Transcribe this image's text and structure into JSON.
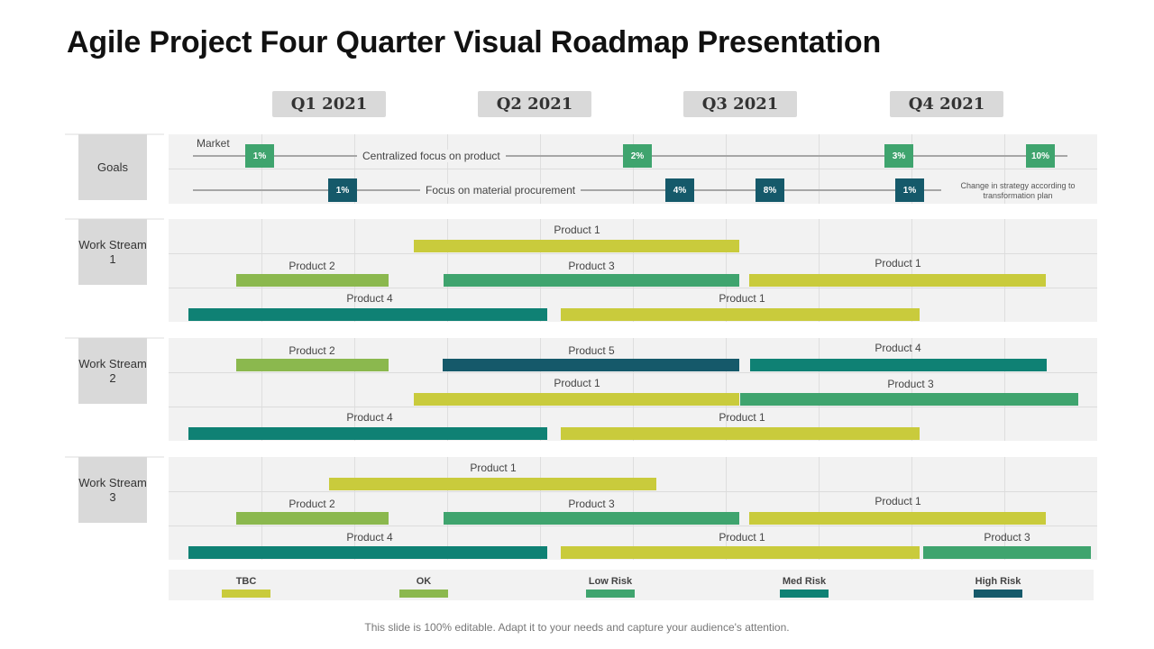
{
  "title": "Agile Project Four Quarter Visual Roadmap Presentation",
  "quarters": [
    "Q1 2021",
    "Q2 2021",
    "Q3 2021",
    "Q4 2021"
  ],
  "colors": {
    "tbc": "#c9cb3c",
    "ok": "#8bb84e",
    "low_risk": "#3fa46e",
    "med_risk": "#0f8174",
    "high_risk": "#15596a"
  },
  "goals": {
    "label": "Goals",
    "market_label": "Market",
    "row1": {
      "text": "Centralized focus on product",
      "badges": [
        "1%",
        "2%",
        "3%",
        "10%"
      ]
    },
    "row2": {
      "text": "Focus on material procurement",
      "badges": [
        "1%",
        "4%",
        "8%",
        "1%"
      ],
      "note": "Change in strategy according to transformation plan"
    }
  },
  "streams": [
    {
      "label": "Work Stream 1",
      "bars": [
        {
          "label": "Product 1",
          "status": "tbc"
        },
        {
          "label": "Product 2",
          "status": "ok"
        },
        {
          "label": "Product 3",
          "status": "low_risk"
        },
        {
          "label": "Product 1",
          "status": "tbc"
        },
        {
          "label": "Product 4",
          "status": "med_risk"
        },
        {
          "label": "Product 1",
          "status": "tbc"
        }
      ]
    },
    {
      "label": "Work Stream 2",
      "bars": [
        {
          "label": "Product 2",
          "status": "ok"
        },
        {
          "label": "Product 5",
          "status": "high_risk"
        },
        {
          "label": "Product 4",
          "status": "med_risk"
        },
        {
          "label": "Product 1",
          "status": "tbc"
        },
        {
          "label": "Product 3",
          "status": "low_risk"
        },
        {
          "label": "Product 4",
          "status": "med_risk"
        },
        {
          "label": "Product 1",
          "status": "tbc"
        }
      ]
    },
    {
      "label": "Work Stream 3",
      "bars": [
        {
          "label": "Product 1",
          "status": "tbc"
        },
        {
          "label": "Product 2",
          "status": "ok"
        },
        {
          "label": "Product 3",
          "status": "low_risk"
        },
        {
          "label": "Product 1",
          "status": "tbc"
        },
        {
          "label": "Product 4",
          "status": "med_risk"
        },
        {
          "label": "Product 1",
          "status": "tbc"
        },
        {
          "label": "Product 3",
          "status": "low_risk"
        }
      ]
    }
  ],
  "legend": [
    {
      "label": "TBC",
      "status": "tbc"
    },
    {
      "label": "OK",
      "status": "ok"
    },
    {
      "label": "Low Risk",
      "status": "low_risk"
    },
    {
      "label": "Med Risk",
      "status": "med_risk"
    },
    {
      "label": "High Risk",
      "status": "high_risk"
    }
  ],
  "footer": "This slide is 100% editable. Adapt it to your needs and capture your audience's attention."
}
